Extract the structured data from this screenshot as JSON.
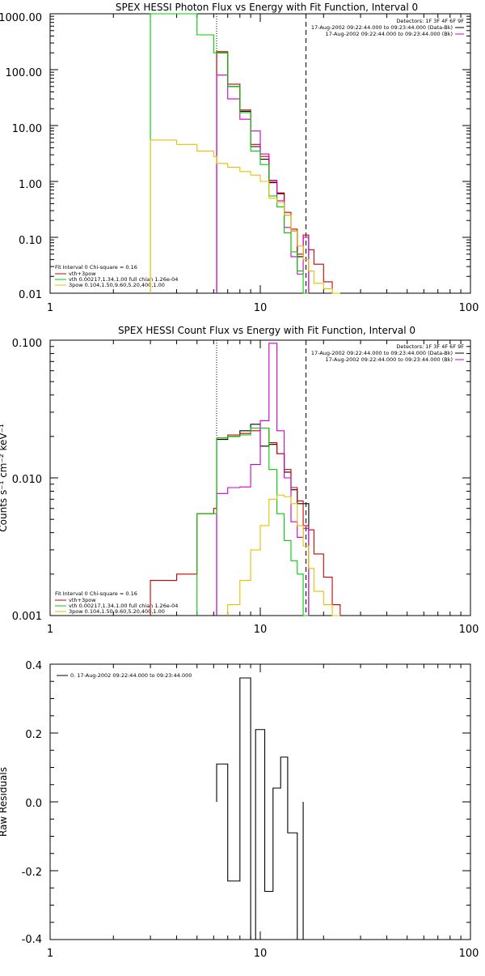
{
  "chart_data": [
    {
      "type": "line",
      "title": "SPEX HESSI Photon Flux vs Energy with Fit Function, Interval 0",
      "ylabel": "",
      "xlabel": "",
      "xscale": "log",
      "yscale": "log",
      "xlim": [
        1,
        100
      ],
      "ylim": [
        0.01,
        1000
      ],
      "x_tick_labels": [
        "1",
        "10",
        "100"
      ],
      "y_tick_labels": [
        "0.01",
        "0.10",
        "1.00",
        "10.00",
        "100.00",
        "1000.00"
      ],
      "vlines": [
        {
          "x": 6.2,
          "style": "dotted"
        },
        {
          "x": 16.5,
          "style": "dashed"
        }
      ],
      "legend_top": [
        "Detectors: 1F 3F 4F 6F 9F",
        "17-Aug-2002 09:22:44.000 to 09:23:44.000 (Data-Bk)",
        "17-Aug-2002 09:22:44.000 to 09:23:44.000 (Bk)"
      ],
      "legend_bottom": [
        "Fit Interval 0   Chi-square = 0.16",
        "vth+3pow",
        "vth 0.00217,1.34,1.00  full chian 1.26e-04",
        "3pow 0.104,1.50,9.60,5.20,400,1.00"
      ],
      "bin_edges": [
        1,
        3,
        4,
        5,
        6,
        6.2,
        7,
        8,
        9,
        10,
        11,
        12,
        13,
        14,
        15,
        16,
        17,
        18,
        20,
        22,
        24,
        26
      ],
      "series": [
        {
          "name": "",
          "color": "#000000",
          "values": [
            null,
            null,
            null,
            null,
            null,
            200,
            50,
            18,
            4.2,
            2.5,
            0.95,
            0.62,
            0.25,
            0.13,
            0.045,
            0.1,
            null,
            null,
            null,
            null,
            null
          ]
        },
        {
          "name": "",
          "color": "#cc0000",
          "values": [
            null,
            null,
            null,
            null,
            null,
            210,
            55,
            19,
            4.6,
            2.8,
            1.0,
            0.6,
            0.28,
            0.14,
            0.05,
            0.11,
            0.06,
            0.033,
            0.016,
            null,
            null
          ]
        },
        {
          "name": "",
          "color": "#cc00cc",
          "values": [
            null,
            null,
            null,
            null,
            null,
            80,
            30,
            13,
            8,
            3.1,
            1.05,
            0.45,
            0.15,
            0.045,
            0.022,
            0.1,
            null,
            null,
            null,
            null,
            null
          ]
        },
        {
          "name": "",
          "color": "#00cc00",
          "values": [
            null,
            1000,
            1000,
            420,
            200,
            200,
            50,
            17,
            3.5,
            2.0,
            0.55,
            0.35,
            0.12,
            0.055,
            0.025,
            0.01,
            null,
            null,
            null,
            null,
            null
          ]
        },
        {
          "name": "",
          "color": "#e6c000",
          "values": [
            null,
            5.5,
            4.6,
            3.5,
            2.8,
            2.1,
            1.8,
            1.5,
            1.3,
            1.0,
            0.5,
            0.42,
            0.25,
            0.13,
            0.07,
            0.04,
            0.025,
            0.015,
            0.012,
            0.01,
            null
          ]
        }
      ]
    },
    {
      "type": "line",
      "title": "SPEX HESSI Count Flux vs Energy with Fit Function, Interval 0",
      "ylabel": "Counts s⁻¹ cm⁻² keV⁻¹",
      "xlabel": "",
      "xscale": "log",
      "yscale": "log",
      "xlim": [
        1,
        100
      ],
      "ylim": [
        0.001,
        0.1
      ],
      "x_tick_labels": [
        "1",
        "10",
        "100"
      ],
      "y_tick_labels": [
        "0.001",
        "0.010",
        "0.100"
      ],
      "vlines": [
        {
          "x": 6.2,
          "style": "dotted"
        },
        {
          "x": 16.5,
          "style": "dashed"
        }
      ],
      "legend_top": [
        "Detectors: 1F 3F 4F 6F 9F",
        "17-Aug-2002 09:22:44.000 to 09:23:44.000 (Data-Bk)",
        "17-Aug-2002 09:22:44.000 to 09:23:44.000 (Bk)"
      ],
      "legend_bottom": [
        "Fit Interval 0   Chi-square = 0.16",
        "vth+3pow",
        "vth 0.00217,1.34,1.00  full chian 1.26e-04",
        "3pow 0.104,1.50,9.60,5.20,400,1.00"
      ],
      "bin_edges": [
        1,
        3,
        4,
        5,
        6,
        6.2,
        7,
        8,
        9,
        10,
        11,
        12,
        13,
        14,
        15,
        16,
        17,
        18,
        20,
        22,
        24,
        26
      ],
      "series": [
        {
          "name": "",
          "color": "#000000",
          "values": [
            null,
            null,
            null,
            null,
            null,
            0.019,
            0.02,
            0.022,
            0.0245,
            0.017,
            0.0175,
            0.015,
            0.011,
            0.0082,
            0.0065,
            0.0065,
            null,
            null,
            null,
            null,
            null
          ]
        },
        {
          "name": "",
          "color": "#cc0000",
          "values": [
            null,
            0.0018,
            0.002,
            0.0055,
            0.006,
            0.0195,
            0.0205,
            0.021,
            0.022,
            0.023,
            0.018,
            0.015,
            0.0115,
            0.0085,
            0.0068,
            0.0045,
            0.0042,
            0.0028,
            0.0019,
            0.0012,
            null
          ]
        },
        {
          "name": "",
          "color": "#cc00cc",
          "values": [
            null,
            null,
            null,
            null,
            null,
            0.0077,
            0.0085,
            0.0086,
            0.0125,
            0.026,
            0.095,
            0.022,
            0.01,
            0.0048,
            0.0037,
            0.0043,
            null,
            null,
            null,
            null,
            null
          ]
        },
        {
          "name": "",
          "color": "#00cc00",
          "values": [
            null,
            null,
            null,
            0.0055,
            0.0055,
            0.0195,
            0.02,
            0.0205,
            0.023,
            0.023,
            0.0115,
            0.0055,
            0.0035,
            0.0025,
            0.002,
            0.001,
            null,
            null,
            null,
            null,
            null
          ]
        },
        {
          "name": "",
          "color": "#e6c000",
          "values": [
            null,
            null,
            null,
            null,
            null,
            null,
            0.0012,
            0.0018,
            0.003,
            0.0045,
            0.007,
            0.0075,
            0.0073,
            0.0065,
            0.0045,
            0.0032,
            0.0022,
            0.0015,
            0.0012,
            0.001,
            null
          ]
        }
      ]
    },
    {
      "type": "line",
      "title": "",
      "ylabel": "Raw Residuals",
      "xlabel": "",
      "xscale": "log",
      "yscale": "linear",
      "xlim": [
        1,
        100
      ],
      "ylim": [
        -0.4,
        0.4
      ],
      "x_tick_labels": [
        "1",
        "10",
        "100"
      ],
      "y_tick_labels": [
        "-0.4",
        "-0.2",
        "0.0",
        "0.2",
        "0.4"
      ],
      "legend": "0. 17-Aug-2002 09:22:44.000 to 09:23:44.000",
      "bin_edges": [
        6.2,
        7,
        8,
        9,
        9.5,
        10.5,
        11.5,
        12.5,
        13.5,
        15,
        16,
        17
      ],
      "series": [
        {
          "name": "",
          "color": "#000000",
          "values": [
            0.11,
            -0.23,
            0.36,
            -0.4,
            0.21,
            -0.26,
            0.04,
            0.13,
            -0.09,
            -0.4,
            null
          ]
        }
      ]
    }
  ]
}
